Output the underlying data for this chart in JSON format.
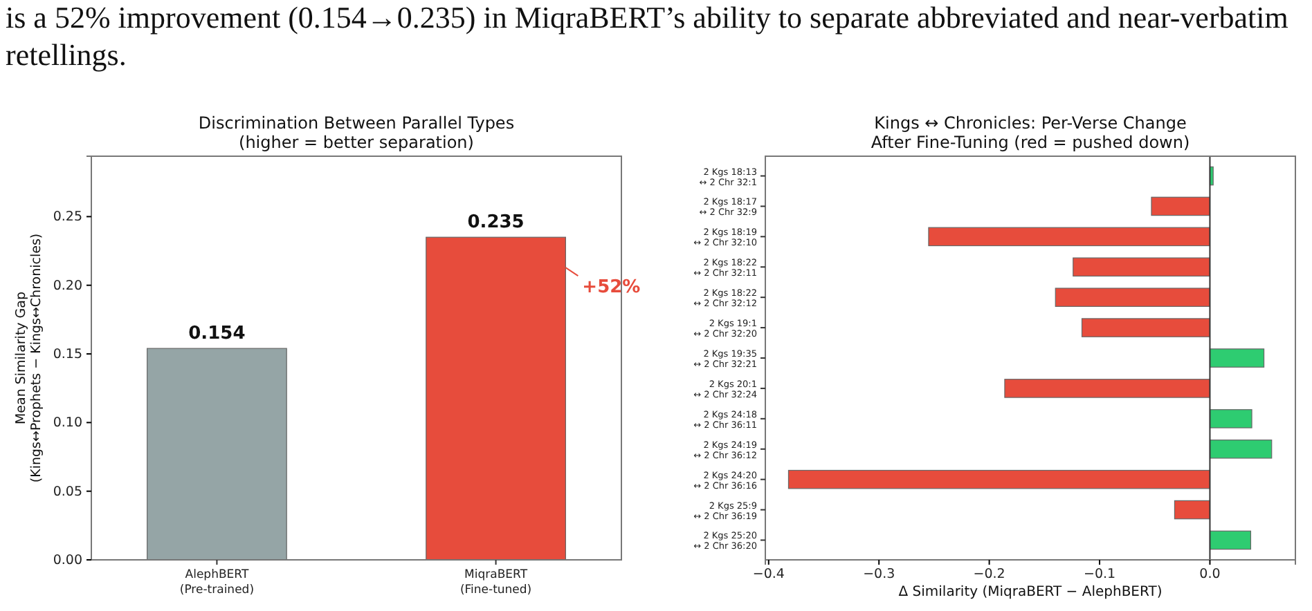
{
  "chart_data": [
    {
      "type": "bar",
      "title": "Discrimination Between Parallel Types\n(higher = better separation)",
      "ylabel": "Mean Similarity Gap\n(Kings↔Prophets − Kings↔Chronicles)",
      "categories": [
        "AlephBERT\n(Pre-trained)",
        "MiqraBERT\n(Fine-tuned)"
      ],
      "values": [
        0.154,
        0.235
      ],
      "colors": [
        "#95a5a6",
        "#e74c3c"
      ],
      "ylim": [
        0,
        0.294
      ],
      "yticks": [
        {
          "value": 0,
          "label": "0.00"
        },
        {
          "value": 0.05,
          "label": "0.05"
        },
        {
          "value": 0.1,
          "label": "0.10"
        },
        {
          "value": 0.15,
          "label": "0.15"
        },
        {
          "value": 0.2,
          "label": "0.20"
        },
        {
          "value": 0.25,
          "label": "0.25"
        }
      ],
      "data_labels": true,
      "grid": false,
      "annotations": [
        "is a 52% improvement (0.154→0.235) in MiqraBERT’s ability to separate abbreviated and near-verbatim retellings.",
        "+52%"
      ]
    },
    {
      "type": "bar",
      "orientation": "horizontal",
      "title": "Kings ↔ Chronicles: Per-Verse Change\nAfter Fine-Tuning (red = pushed down)",
      "xlabel": "Δ Similarity (MiqraBERT − AlephBERT)",
      "categories": [
        "2 Kgs 18:13\n↔ 2 Chr 32:1",
        "2 Kgs 18:17\n↔ 2 Chr 32:9",
        "2 Kgs 18:19\n↔ 2 Chr 32:10",
        "2 Kgs 18:22\n↔ 2 Chr 32:11",
        "2 Kgs 18:22\n↔ 2 Chr 32:12",
        "2 Kgs 19:1\n↔ 2 Chr 32:20",
        "2 Kgs 19:35\n↔ 2 Chr 32:21",
        "2 Kgs 20:1\n↔ 2 Chr 32:24",
        "2 Kgs 24:18\n↔ 2 Chr 36:11",
        "2 Kgs 24:19\n↔ 2 Chr 36:12",
        "2 Kgs 24:20\n↔ 2 Chr 36:16",
        "2 Kgs 25:9\n↔ 2 Chr 36:19",
        "2 Kgs 25:20\n↔ 2 Chr 36:20"
      ],
      "values": [
        0.003,
        -0.053,
        -0.255,
        -0.124,
        -0.14,
        -0.116,
        0.049,
        -0.186,
        0.038,
        0.056,
        -0.382,
        -0.032,
        0.037
      ],
      "colors": [
        "#2ecc71",
        "#e74c3c",
        "#e74c3c",
        "#e74c3c",
        "#e74c3c",
        "#e74c3c",
        "#2ecc71",
        "#e74c3c",
        "#2ecc71",
        "#2ecc71",
        "#e74c3c",
        "#e74c3c",
        "#2ecc71"
      ],
      "xlim": [
        -0.403,
        0.0775
      ],
      "xticks": [
        {
          "value": -0.4,
          "label": "−0.4"
        },
        {
          "value": -0.3,
          "label": "−0.3"
        },
        {
          "value": -0.2,
          "label": "−0.2"
        },
        {
          "value": -0.1,
          "label": "−0.1"
        },
        {
          "value": 0,
          "label": "0.0"
        }
      ],
      "ref_lines": [
        {
          "axis": "x",
          "value": 0,
          "color": "#333333"
        }
      ],
      "grid": false
    }
  ]
}
